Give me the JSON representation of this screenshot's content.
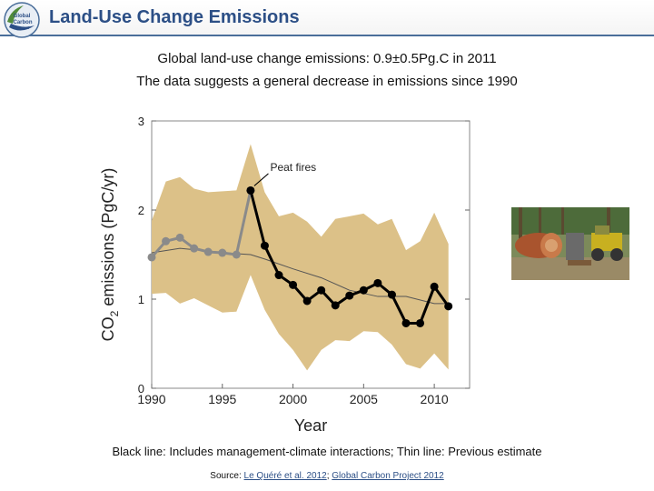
{
  "header": {
    "title": "Land-Use Change Emissions",
    "logo_name": "global-carbon-project-logo",
    "logo_text": [
      "Global",
      "Carbon",
      "Project"
    ],
    "accent_color": "#2c4f86"
  },
  "subtitle": {
    "line1": "Global land-use change emissions: 0.9±0.5Pg.C in 2011",
    "line2": "The data suggests a general decrease in emissions since 1990"
  },
  "chart_data": {
    "type": "line",
    "title": "",
    "xlabel": "Year",
    "ylabel_main": "CO",
    "ylabel_sub": "2",
    "ylabel_rest": " emissions (PgC/yr)",
    "xlim": [
      1990,
      2012.5
    ],
    "ylim": [
      0,
      3
    ],
    "xticks": [
      1990,
      1995,
      2000,
      2005,
      2010
    ],
    "yticks": [
      0,
      1,
      2,
      3
    ],
    "band_color": "#dcc188",
    "x": [
      1990,
      1991,
      1992,
      1993,
      1994,
      1995,
      1996,
      1997,
      1998,
      1999,
      2000,
      2001,
      2002,
      2003,
      2004,
      2005,
      2006,
      2007,
      2008,
      2009,
      2010,
      2011
    ],
    "band_upper": [
      1.88,
      2.32,
      2.37,
      2.24,
      2.2,
      2.21,
      2.22,
      2.74,
      2.2,
      1.93,
      1.97,
      1.87,
      1.7,
      1.9,
      1.93,
      1.96,
      1.84,
      1.9,
      1.55,
      1.65,
      1.97,
      1.62
    ],
    "band_lower": [
      1.06,
      1.07,
      0.95,
      1.01,
      0.93,
      0.85,
      0.86,
      1.27,
      0.88,
      0.61,
      0.43,
      0.2,
      0.43,
      0.54,
      0.53,
      0.64,
      0.63,
      0.49,
      0.27,
      0.22,
      0.39,
      0.21
    ],
    "series": [
      {
        "name": "Includes management-climate interactions (grey)",
        "color": "#8a8a8a",
        "x": [
          1990,
          1991,
          1992,
          1993,
          1994,
          1995,
          1996,
          1997
        ],
        "values": [
          1.47,
          1.65,
          1.69,
          1.57,
          1.53,
          1.52,
          1.5,
          2.22
        ]
      },
      {
        "name": "Includes management-climate interactions (black)",
        "color": "#000000",
        "x": [
          1997,
          1998,
          1999,
          2000,
          2001,
          2002,
          2003,
          2004,
          2005,
          2006,
          2007,
          2008,
          2009,
          2010,
          2011
        ],
        "values": [
          2.22,
          1.6,
          1.27,
          1.16,
          0.98,
          1.1,
          0.93,
          1.04,
          1.1,
          1.18,
          1.05,
          0.73,
          0.73,
          1.14,
          0.92
        ]
      },
      {
        "name": "Previous estimate",
        "color": "#555555",
        "x": [
          1990,
          1992,
          1994,
          1996,
          1997,
          1998,
          2000,
          2002,
          2004,
          2006,
          2008,
          2010,
          2011
        ],
        "values": [
          1.52,
          1.57,
          1.54,
          1.51,
          1.5,
          1.45,
          1.34,
          1.24,
          1.1,
          1.03,
          1.03,
          0.95,
          0.95
        ]
      }
    ],
    "annotations": [
      {
        "text": "Peat fires",
        "x": 1998,
        "y": 2.47,
        "point_x": 1997,
        "point_y": 2.22
      }
    ]
  },
  "photo": {
    "name": "deforestation-photo"
  },
  "caption": "Black line: Includes management-climate interactions; Thin line: Previous estimate",
  "source": {
    "prefix": "Source: ",
    "link1": "Le Quéré et al. 2012",
    "separator": "; ",
    "link2": "Global Carbon Project 2012"
  }
}
